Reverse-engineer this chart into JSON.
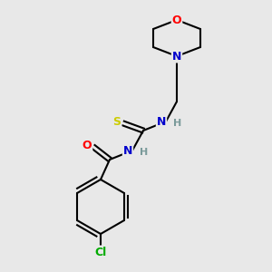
{
  "background_color": "#e8e8e8",
  "bond_color": "#000000",
  "bond_width": 1.5,
  "atom_colors": {
    "O": "#ff0000",
    "N": "#0000cc",
    "S": "#cccc00",
    "Cl": "#00aa00",
    "C": "#000000",
    "H": "#7a9a9a"
  },
  "figsize": [
    3.0,
    3.0
  ],
  "dpi": 100,
  "xlim": [
    0,
    300
  ],
  "ylim": [
    0,
    300
  ]
}
